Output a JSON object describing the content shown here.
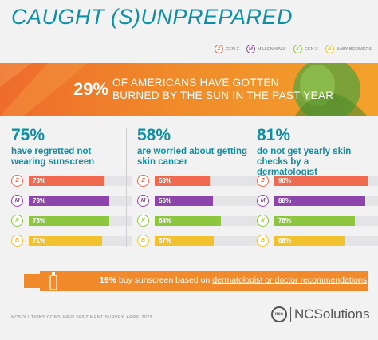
{
  "title": "Caught (S)unprepared",
  "legend": [
    {
      "letter": "Z",
      "label": "GEN Z",
      "color": "#ef6a4f"
    },
    {
      "letter": "M",
      "label": "MILLENNIALS",
      "color": "#8e44ad"
    },
    {
      "letter": "X",
      "label": "GEN X",
      "color": "#8dc63f"
    },
    {
      "letter": "B",
      "label": "BABY BOOMERS",
      "color": "#f2c12e"
    }
  ],
  "banner": {
    "pct": "29%",
    "line1": "OF AMERICANS HAVE GOTTEN",
    "line2": "BURNED BY THE SUN IN THE PAST YEAR"
  },
  "chart_data": [
    {
      "type": "bar",
      "headline": "75%",
      "description": "have regretted not wearing sunscreen",
      "categories": [
        "Z",
        "M",
        "X",
        "B"
      ],
      "values": [
        73,
        78,
        78,
        71
      ],
      "labels": [
        "73%",
        "78%",
        "78%",
        "71%"
      ]
    },
    {
      "type": "bar",
      "headline": "58%",
      "description": "are worried about getting skin cancer",
      "categories": [
        "Z",
        "M",
        "X",
        "B"
      ],
      "values": [
        53,
        56,
        64,
        57
      ],
      "labels": [
        "53%",
        "56%",
        "64%",
        "57%"
      ]
    },
    {
      "type": "bar",
      "headline": "81%",
      "description": "do not get yearly skin checks by a dermatologist",
      "categories": [
        "Z",
        "M",
        "X",
        "B"
      ],
      "values": [
        90,
        88,
        78,
        68
      ],
      "labels": [
        "90%",
        "88%",
        "78%",
        "68%"
      ]
    }
  ],
  "callout": {
    "pct": "19%",
    "text": "buy sunscreen based on",
    "link": "dermatologist or doctor recommendations"
  },
  "footer": "NCSOLUTIONS CONSUMER SENTIMENT SURVEY, APRIL 2023",
  "logo": {
    "mark": "ncs",
    "text": "NCSolutions"
  }
}
